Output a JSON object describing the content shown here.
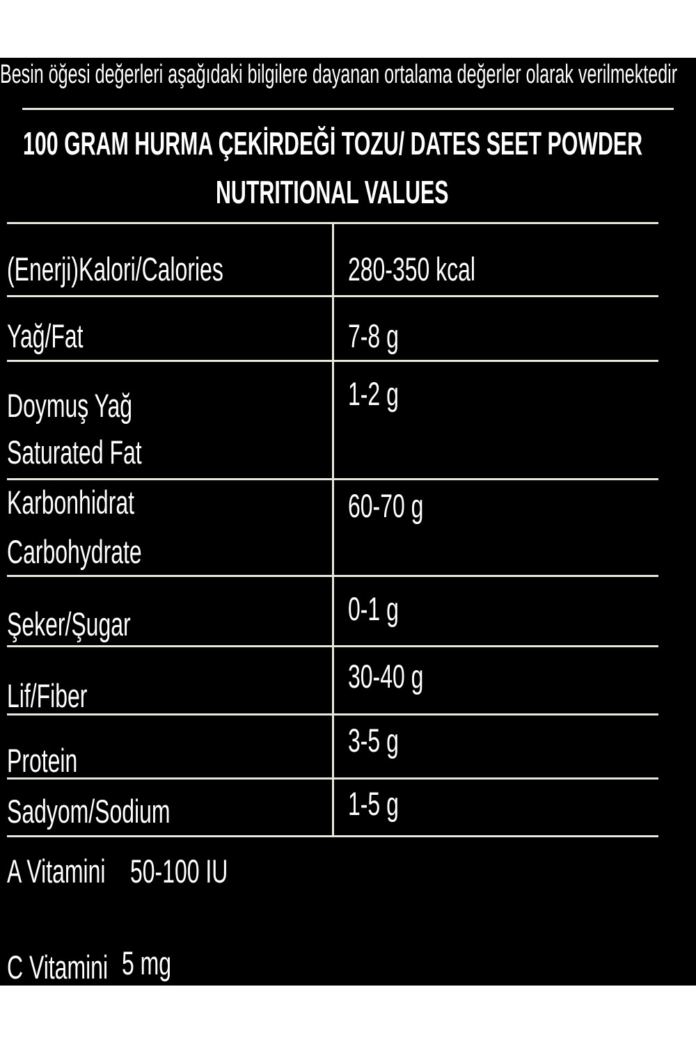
{
  "note": "Besin öğesi değerleri aşağıdaki bilgilere dayanan ortalama değerler olarak verilmektedir",
  "title_line1": "100 GRAM HURMA ÇEKİRDEĞİ TOZU/ DATES SEET POWDER",
  "title_line2": "NUTRITIONAL VALUES",
  "rows": [
    {
      "label": "(Enerji)Kalori/Calories",
      "value": "280-350 kcal"
    },
    {
      "label": "Yağ/Fat",
      "value": "7-8 g"
    },
    {
      "label": "Doymuş Yağ",
      "label2": "Saturated Fat",
      "value": "1-2 g"
    },
    {
      "label": "Karbonhidrat",
      "label2": "Carbohydrate",
      "value": "60-70 g"
    },
    {
      "label": "Şeker/Şugar",
      "value": "0-1 g"
    },
    {
      "label": "Lif/Fiber",
      "value": "30-40 g"
    },
    {
      "label": "Protein",
      "value": "3-5 g"
    },
    {
      "label": "Sadyom/Sodium",
      "value": "1-5 g"
    }
  ],
  "vitamins": [
    {
      "label": "A Vitamini",
      "value": "50-100 IU"
    },
    {
      "label": "C Vitamini",
      "value": "5 mg"
    }
  ]
}
